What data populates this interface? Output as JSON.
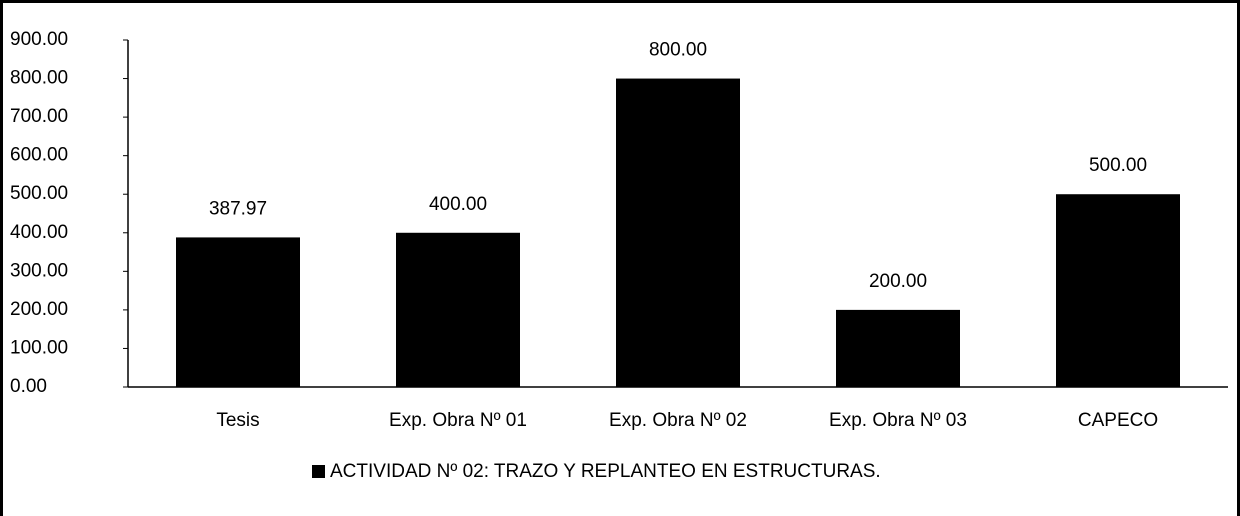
{
  "chart_data": {
    "type": "bar",
    "categories": [
      "Tesis",
      "Exp. Obra Nº 01",
      "Exp. Obra Nº 02",
      "Exp. Obra Nº 03",
      "CAPECO"
    ],
    "series": [
      {
        "name": "ACTIVIDAD Nº 02: TRAZO Y REPLANTEO EN ESTRUCTURAS.",
        "color": "#000000",
        "values": [
          387.97,
          400,
          800,
          200,
          500
        ],
        "value_labels": [
          "387.97",
          "400.00",
          "800.00",
          "200.00",
          "500.00"
        ]
      }
    ],
    "ylim": [
      0,
      900
    ],
    "yticks": [
      {
        "value": 0,
        "label": "0.00"
      },
      {
        "value": 100,
        "label": "100.00"
      },
      {
        "value": 200,
        "label": "200.00"
      },
      {
        "value": 300,
        "label": "300.00"
      },
      {
        "value": 400,
        "label": "400.00"
      },
      {
        "value": 500,
        "label": "500.00"
      },
      {
        "value": 600,
        "label": "600.00"
      },
      {
        "value": 700,
        "label": "700.00"
      },
      {
        "value": 800,
        "label": "800.00"
      },
      {
        "value": 900,
        "label": "900.00"
      }
    ],
    "legend": "bottom"
  }
}
